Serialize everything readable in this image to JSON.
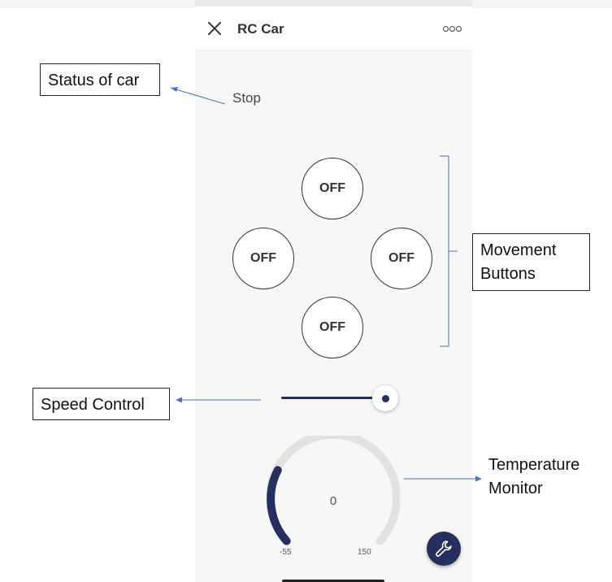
{
  "app": {
    "title": "RC Car",
    "close_icon": "close-icon",
    "menu_icon": "more-options-icon"
  },
  "status": {
    "text": "Stop"
  },
  "movement": {
    "up": "OFF",
    "left": "OFF",
    "right": "OFF",
    "down": "OFF"
  },
  "speed": {
    "level": 0.85
  },
  "temperature": {
    "value": "0",
    "min": "-55",
    "max": "150",
    "accent_color": "#263060",
    "track_color": "#e2e2e2"
  },
  "fab": {
    "icon": "wrench-icon"
  },
  "annotations": {
    "status": "Status of car",
    "movement_line1": "Movement",
    "movement_line2": "Buttons",
    "speed": "Speed Control",
    "temperature_line1": "Temperature",
    "temperature_line2": "Monitor"
  }
}
